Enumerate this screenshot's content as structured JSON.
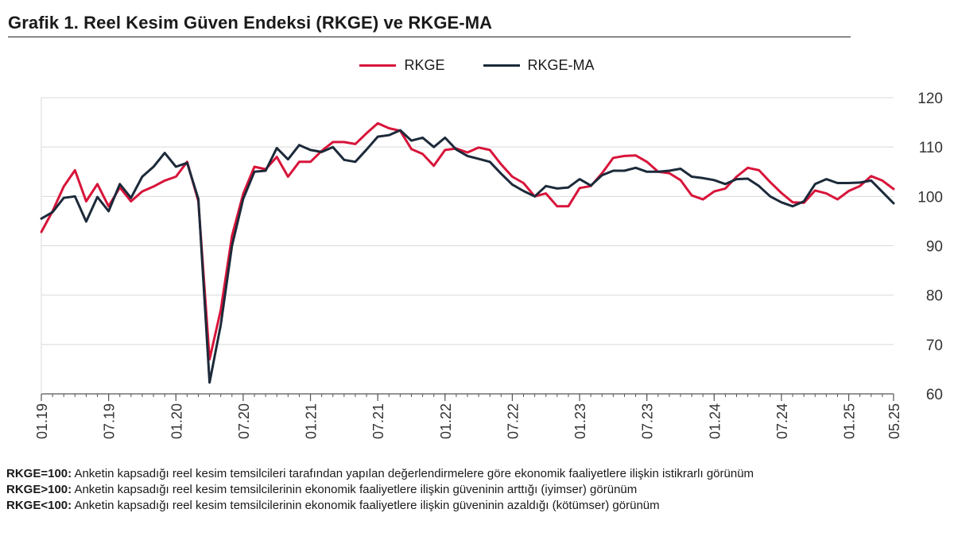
{
  "title": "Grafik 1. Reel Kesim Güven Endeksi (RKGE) ve RKGE-MA",
  "colors": {
    "rkge": "#d8143a",
    "rkge_ma": "#1c2a3a",
    "grid": "#d9d9d9",
    "axis": "#555555"
  },
  "notes": [
    {
      "label": "RKGE=100:",
      "text": " Anketin kapsadığı reel kesim temsilcileri tarafından yapılan değerlendirmelere göre ekonomik faaliyetlere ilişkin istikrarlı görünüm"
    },
    {
      "label": "RKGE>100:",
      "text": " Anketin kapsadığı reel kesim temsilcilerinin ekonomik faaliyetlere ilişkin güveninin arttığı (iyimser) görünüm"
    },
    {
      "label": "RKGE<100:",
      "text": " Anketin kapsadığı reel kesim temsilcilerinin ekonomik faaliyetlere ilişkin güveninin azaldığı (kötümser) görünüm"
    }
  ],
  "chart_data": {
    "type": "line",
    "title": "Grafik 1. Reel Kesim Güven Endeksi (RKGE) ve RKGE-MA",
    "xlabel": "",
    "ylabel": "",
    "ylim": [
      60,
      120
    ],
    "yticks": [
      60,
      70,
      80,
      90,
      100,
      110,
      120
    ],
    "x_start": "01.19",
    "x_end": "05.25",
    "xticks": [
      "01.19",
      "07.19",
      "01.20",
      "07.20",
      "01.21",
      "07.21",
      "01.22",
      "07.22",
      "01.23",
      "07.23",
      "01.24",
      "07.24",
      "01.25",
      "05.25"
    ],
    "grid": "horizontal",
    "legend_position": "top-center",
    "series": [
      {
        "name": "RKGE",
        "values": [
          92.8,
          97.0,
          102.0,
          105.3,
          99.0,
          102.5,
          98.0,
          101.8,
          99.0,
          101.0,
          102.0,
          103.2,
          104.0,
          107.0,
          99.0,
          67.0,
          77.0,
          92.0,
          100.5,
          106.0,
          105.5,
          108.0,
          104.0,
          107.0,
          107.0,
          109.2,
          111.0,
          111.0,
          110.6,
          112.8,
          114.8,
          113.8,
          113.3,
          109.6,
          108.6,
          106.2,
          109.4,
          109.7,
          108.9,
          109.9,
          109.4,
          106.5,
          104.0,
          102.7,
          100.0,
          100.6,
          98.0,
          98.0,
          101.7,
          102.1,
          104.7,
          107.8,
          108.2,
          108.3,
          107.0,
          105.0,
          104.7,
          103.3,
          100.2,
          99.4,
          101.0,
          101.6,
          104.0,
          105.8,
          105.3,
          102.9,
          100.7,
          98.8,
          98.7,
          101.2,
          100.6,
          99.4,
          101.1,
          102.1,
          104.1,
          103.2,
          101.5
        ]
      },
      {
        "name": "RKGE-MA",
        "values": [
          95.5,
          96.8,
          99.7,
          100.0,
          94.9,
          99.9,
          97.0,
          102.5,
          99.7,
          104.0,
          106.0,
          108.8,
          106.0,
          106.8,
          99.5,
          62.3,
          74.0,
          90.0,
          99.5,
          105.0,
          105.2,
          109.8,
          107.5,
          110.4,
          109.4,
          109.0,
          110.0,
          107.4,
          107.0,
          109.5,
          112.1,
          112.4,
          113.4,
          111.3,
          111.9,
          110.0,
          111.9,
          109.5,
          108.2,
          107.6,
          107.0,
          104.6,
          102.4,
          101.1,
          100.0,
          102.1,
          101.6,
          101.8,
          103.5,
          102.2,
          104.3,
          105.2,
          105.2,
          105.8,
          105.0,
          105.0,
          105.2,
          105.6,
          104.0,
          103.7,
          103.3,
          102.5,
          103.5,
          103.6,
          102.1,
          100.0,
          98.8,
          98.0,
          99.0,
          102.5,
          103.5,
          102.7,
          102.7,
          102.8,
          103.2,
          100.9,
          98.6
        ]
      }
    ]
  }
}
